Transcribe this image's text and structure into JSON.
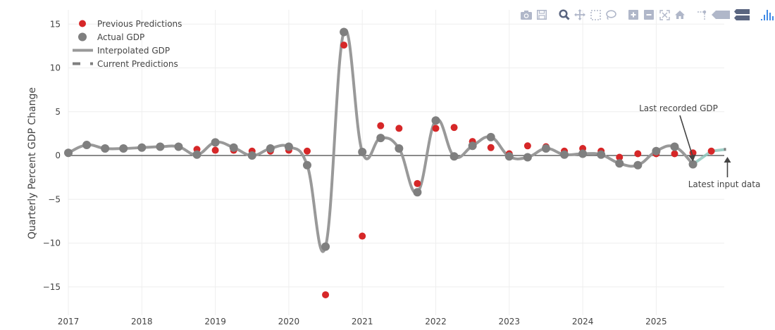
{
  "chart_data": {
    "type": "line",
    "title": "",
    "xlabel": "",
    "ylabel": "Quarterly Percent GDP Change",
    "ylim": [
      -18,
      16.5
    ],
    "yticks": [
      15,
      10,
      5,
      0,
      -5,
      -10,
      -15
    ],
    "ytick_labels": [
      "15",
      "10",
      "5",
      "0",
      "−5",
      "−10",
      "−15"
    ],
    "xticks": [
      2017,
      2018,
      2019,
      2020,
      2021,
      2022,
      2023,
      2024,
      2025
    ],
    "xtick_labels": [
      "2017",
      "2018",
      "2019",
      "2020",
      "2021",
      "2022",
      "2023",
      "2024",
      "2025"
    ],
    "xlim": [
      2017.0,
      2025.95
    ],
    "grid": true,
    "legend_position": "top-left",
    "colors": {
      "previous_predictions": "#d62728",
      "actual_gdp": "#7f7f7f",
      "interpolated_gdp": "#999999",
      "current_predictions": "#8fc7bd",
      "zero_line": "#444444",
      "grid": "#eeeeee"
    },
    "series": [
      {
        "name": "Actual GDP",
        "kind": "markers",
        "x": [
          2017.0,
          2017.25,
          2017.5,
          2017.75,
          2018.0,
          2018.25,
          2018.5,
          2018.75,
          2019.0,
          2019.25,
          2019.5,
          2019.75,
          2020.0,
          2020.25,
          2020.5,
          2020.75,
          2021.0,
          2021.25,
          2021.5,
          2021.75,
          2022.0,
          2022.25,
          2022.5,
          2022.75,
          2023.0,
          2023.25,
          2023.5,
          2023.75,
          2024.0,
          2024.25,
          2024.5,
          2024.75,
          2025.0,
          2025.25,
          2025.5
        ],
        "y": [
          0.3,
          1.2,
          0.8,
          0.8,
          0.9,
          1.0,
          1.0,
          0.1,
          1.5,
          0.9,
          0.0,
          0.8,
          1.0,
          -1.1,
          -10.4,
          14.1,
          0.4,
          2.0,
          0.8,
          -4.2,
          4.0,
          -0.1,
          1.1,
          2.1,
          -0.1,
          -0.2,
          0.8,
          0.1,
          0.2,
          0.1,
          -0.9,
          -1.1,
          0.5,
          1.0,
          -1.0
        ]
      },
      {
        "name": "Previous Predictions",
        "kind": "markers",
        "x": [
          2018.75,
          2019.0,
          2019.25,
          2019.5,
          2019.75,
          2020.0,
          2020.25,
          2020.5,
          2020.75,
          2021.0,
          2021.25,
          2021.5,
          2021.75,
          2022.0,
          2022.25,
          2022.5,
          2022.75,
          2023.0,
          2023.25,
          2023.5,
          2023.75,
          2024.0,
          2024.25,
          2024.5,
          2024.75,
          2025.0,
          2025.25,
          2025.5,
          2025.75
        ],
        "y": [
          0.7,
          0.6,
          0.6,
          0.5,
          0.5,
          0.6,
          0.5,
          -15.9,
          12.6,
          -9.2,
          3.4,
          3.1,
          -3.2,
          3.1,
          3.2,
          1.6,
          0.9,
          0.2,
          1.1,
          1.0,
          0.5,
          0.8,
          0.5,
          -0.2,
          0.2,
          0.2,
          0.2,
          0.3,
          0.5
        ]
      },
      {
        "name": "Interpolated GDP",
        "kind": "spline",
        "x_range": [
          2017.0,
          2025.5
        ]
      },
      {
        "name": "Current Predictions",
        "kind": "dashed-line",
        "x": [
          2025.5,
          2025.75,
          2025.95
        ],
        "y": [
          -1.0,
          0.5,
          0.7
        ]
      }
    ],
    "annotations": [
      {
        "text": "Last recorded GDP",
        "x": 2025.5,
        "y": -1.0,
        "arrow": true
      },
      {
        "text": "Latest input data",
        "x": 2025.95,
        "y": 0.0,
        "arrow": true
      }
    ]
  },
  "legend": {
    "items": [
      {
        "label": "Previous Predictions",
        "symbol": "dot",
        "color": "#d62728"
      },
      {
        "label": "Actual GDP",
        "symbol": "dot",
        "color": "#7f7f7f"
      },
      {
        "label": "Interpolated GDP",
        "symbol": "line",
        "color": "#999999"
      },
      {
        "label": "Current Predictions",
        "symbol": "dash",
        "color": "#7f7f7f"
      }
    ]
  },
  "modebar": {
    "buttons": [
      {
        "name": "camera-icon",
        "title": "Download plot as png"
      },
      {
        "name": "save-icon",
        "title": "Save"
      },
      {
        "name": "zoom-icon",
        "title": "Zoom",
        "active": true
      },
      {
        "name": "pan-icon",
        "title": "Pan"
      },
      {
        "name": "box-select-icon",
        "title": "Box Select"
      },
      {
        "name": "lasso-select-icon",
        "title": "Lasso Select"
      },
      {
        "name": "zoom-in-icon",
        "title": "Zoom in"
      },
      {
        "name": "zoom-out-icon",
        "title": "Zoom out"
      },
      {
        "name": "autoscale-icon",
        "title": "Autoscale"
      },
      {
        "name": "reset-axes-icon",
        "title": "Reset axes"
      },
      {
        "name": "spike-lines-icon",
        "title": "Toggle Spike Lines"
      },
      {
        "name": "hover-closest-icon",
        "title": "Show closest data on hover"
      },
      {
        "name": "hover-compare-icon",
        "title": "Compare data on hover"
      },
      {
        "name": "plotly-logo-icon",
        "title": "Produced with Plotly"
      }
    ]
  }
}
